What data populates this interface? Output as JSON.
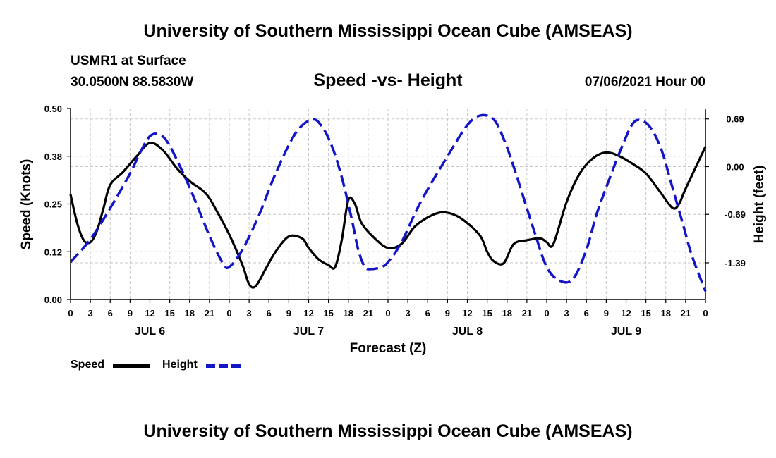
{
  "header": {
    "title": "University of Southern Mississippi Ocean Cube (AMSEAS)",
    "station": "USMR1 at Surface",
    "coords": "30.0500N  88.5830W",
    "timestamp": "07/06/2021 Hour 00"
  },
  "footer": {
    "title": "University of Southern Mississippi Ocean Cube (AMSEAS)"
  },
  "legend": {
    "speed_label": "Speed",
    "height_label": "Height"
  },
  "colors": {
    "speed": "#000000",
    "height": "#1515c8",
    "grid": "#c8c8c8"
  },
  "chart_data": {
    "type": "line",
    "title": "Speed -vs- Height",
    "xlabel": "Forecast (Z)",
    "ylabel": "Speed (Knots)",
    "y2label": "Height (feet)",
    "xlim": [
      0,
      96
    ],
    "ylim": [
      0,
      0.5
    ],
    "y2lim": [
      -1.92,
      0.84
    ],
    "xticks": [
      0,
      3,
      6,
      9,
      12,
      15,
      18,
      21,
      24,
      27,
      30,
      33,
      36,
      39,
      42,
      45,
      48,
      51,
      54,
      57,
      60,
      63,
      66,
      69,
      72,
      75,
      78,
      81,
      84,
      87,
      90,
      93,
      96
    ],
    "xtick_labels": [
      "0",
      "3",
      "6",
      "9",
      "12",
      "15",
      "18",
      "21",
      "0",
      "3",
      "6",
      "9",
      "12",
      "15",
      "18",
      "21",
      "0",
      "3",
      "6",
      "9",
      "12",
      "15",
      "18",
      "21",
      "0",
      "3",
      "6",
      "9",
      "12",
      "15",
      "18",
      "21",
      "0"
    ],
    "day_labels": [
      {
        "label": "JUL 6",
        "x": 12
      },
      {
        "label": "JUL 7",
        "x": 36
      },
      {
        "label": "JUL 8",
        "x": 60
      },
      {
        "label": "JUL 9",
        "x": 84
      }
    ],
    "yticks": [
      0.0,
      0.125,
      0.25,
      0.375,
      0.5
    ],
    "ytick_labels": [
      "0.00",
      "0.12",
      "0.25",
      "0.38",
      "0.50"
    ],
    "y2ticks": [
      0.69,
      0.0,
      -0.69,
      -1.39
    ],
    "y2tick_labels": [
      "0.69",
      "0.00",
      "-0.69",
      "-1.39"
    ],
    "series": [
      {
        "name": "Speed",
        "axis": "left",
        "x": [
          0,
          1,
          2,
          3,
          4,
          5,
          6,
          8,
          10,
          12,
          14,
          16,
          18,
          20,
          21,
          22,
          24,
          26,
          27,
          28,
          29.5,
          31,
          33,
          35,
          36,
          37.5,
          39,
          40,
          41,
          42,
          43,
          44,
          46,
          48,
          50,
          52,
          54,
          56,
          58,
          60,
          62,
          63,
          64,
          65.5,
          67,
          69,
          71,
          72,
          73,
          75,
          77,
          79,
          81,
          83,
          85,
          87,
          89,
          91,
          92,
          93,
          96
        ],
        "values": [
          0.275,
          0.2,
          0.155,
          0.15,
          0.18,
          0.24,
          0.3,
          0.335,
          0.375,
          0.41,
          0.39,
          0.345,
          0.31,
          0.285,
          0.265,
          0.235,
          0.17,
          0.09,
          0.04,
          0.035,
          0.08,
          0.125,
          0.165,
          0.16,
          0.135,
          0.105,
          0.09,
          0.085,
          0.155,
          0.26,
          0.25,
          0.2,
          0.16,
          0.135,
          0.145,
          0.19,
          0.215,
          0.228,
          0.222,
          0.2,
          0.165,
          0.125,
          0.1,
          0.095,
          0.145,
          0.155,
          0.16,
          0.15,
          0.145,
          0.255,
          0.33,
          0.37,
          0.385,
          0.375,
          0.355,
          0.33,
          0.285,
          0.24,
          0.25,
          0.29,
          0.4
        ]
      },
      {
        "name": "Height",
        "axis": "right",
        "x": [
          0,
          3,
          6,
          9,
          10.5,
          12,
          13.5,
          15,
          18,
          21,
          23,
          24,
          26,
          28.5,
          31,
          34,
          36.5,
          38,
          39.5,
          41,
          42.5,
          43.5,
          44.5,
          45.5,
          47,
          48,
          50,
          53,
          57,
          60,
          62,
          64,
          65.5,
          67,
          70,
          72,
          74,
          76,
          78,
          79.5,
          81,
          83,
          85,
          86.5,
          88,
          89.5,
          91,
          92.5,
          94,
          96
        ],
        "values": [
          -1.38,
          -1.05,
          -0.6,
          -0.1,
          0.2,
          0.44,
          0.46,
          0.3,
          -0.3,
          -1.0,
          -1.39,
          -1.45,
          -1.2,
          -0.7,
          -0.1,
          0.48,
          0.68,
          0.58,
          0.3,
          -0.15,
          -0.75,
          -1.2,
          -1.45,
          -1.48,
          -1.45,
          -1.38,
          -1.1,
          -0.5,
          0.15,
          0.6,
          0.74,
          0.68,
          0.4,
          0.0,
          -0.9,
          -1.45,
          -1.65,
          -1.62,
          -1.2,
          -0.7,
          -0.3,
          0.2,
          0.62,
          0.66,
          0.52,
          0.2,
          -0.3,
          -0.8,
          -1.3,
          -1.8
        ]
      }
    ]
  }
}
